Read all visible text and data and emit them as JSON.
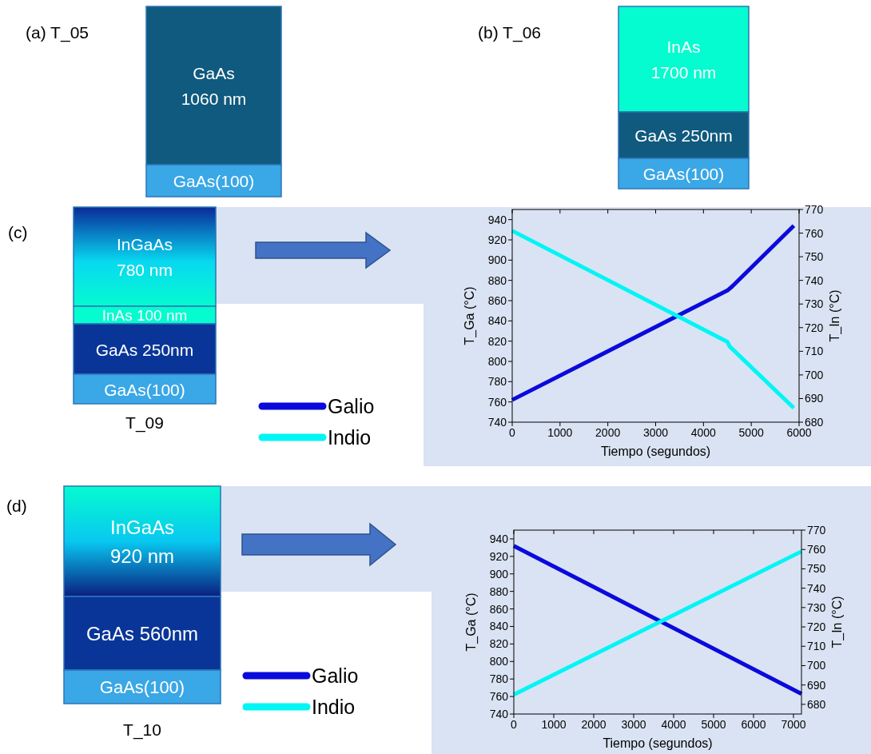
{
  "chart_data": [
    {
      "type": "other",
      "annotations": [
        "(a)  T_05",
        "GaAs\n1060 nm",
        "GaAs(100)",
        "(b) T_06",
        "InAs\n1700 nm",
        "GaAs 250nm",
        "GaAs(100)",
        "(c)",
        "InGaAs\n780 nm",
        "InAs 100 nm",
        "GaAs 250nm",
        "GaAs(100)",
        "T_09",
        "(d)",
        "InGaAs\n920 nm",
        "GaAs 560nm",
        "GaAs(100)",
        "T_10"
      ]
    },
    {
      "type": "line",
      "xlabel": "Tiempo (segundos)",
      "ylabel": "T_Ga (°C)",
      "y2label": "T_In (°C)",
      "xlim": [
        0,
        6000
      ],
      "xticks": [
        0,
        1000,
        2000,
        3000,
        4000,
        5000,
        6000
      ],
      "ylim": [
        740,
        950
      ],
      "yticks": [
        740,
        760,
        780,
        800,
        820,
        840,
        860,
        880,
        900,
        920,
        940
      ],
      "y2lim": [
        680,
        770
      ],
      "y2ticks": [
        680,
        690,
        700,
        710,
        720,
        730,
        740,
        750,
        760,
        770
      ],
      "legend": "left",
      "series": [
        {
          "name": "Galio",
          "color": "#0a0adc",
          "x": [
            0,
            4500,
            4600,
            5890
          ],
          "values": [
            762,
            870,
            874,
            934
          ]
        },
        {
          "name": "Indio",
          "color": "#00f5f5",
          "axis": "y2",
          "x": [
            0,
            4500,
            4550,
            5890
          ],
          "values": [
            761,
            714,
            712,
            686
          ]
        }
      ]
    },
    {
      "type": "line",
      "xlabel": "Tiempo (segundos)",
      "ylabel": "T_Ga (°C)",
      "y2label": "T_In (°C)",
      "xlim": [
        0,
        7200
      ],
      "xticks": [
        0,
        1000,
        2000,
        3000,
        4000,
        5000,
        6000,
        7000
      ],
      "ylim": [
        740,
        950
      ],
      "yticks": [
        740,
        760,
        780,
        800,
        820,
        840,
        860,
        880,
        900,
        920,
        940
      ],
      "y2lim": [
        675,
        770
      ],
      "y2ticks": [
        680,
        690,
        700,
        710,
        720,
        730,
        740,
        750,
        760,
        770
      ],
      "legend": "left",
      "series": [
        {
          "name": "Galio",
          "color": "#0a0adc",
          "x": [
            0,
            7200
          ],
          "values": [
            932,
            763
          ]
        },
        {
          "name": "Indio",
          "color": "#00f5f5",
          "axis": "y2",
          "x": [
            0,
            7200
          ],
          "values": [
            685,
            759
          ]
        }
      ]
    }
  ]
}
